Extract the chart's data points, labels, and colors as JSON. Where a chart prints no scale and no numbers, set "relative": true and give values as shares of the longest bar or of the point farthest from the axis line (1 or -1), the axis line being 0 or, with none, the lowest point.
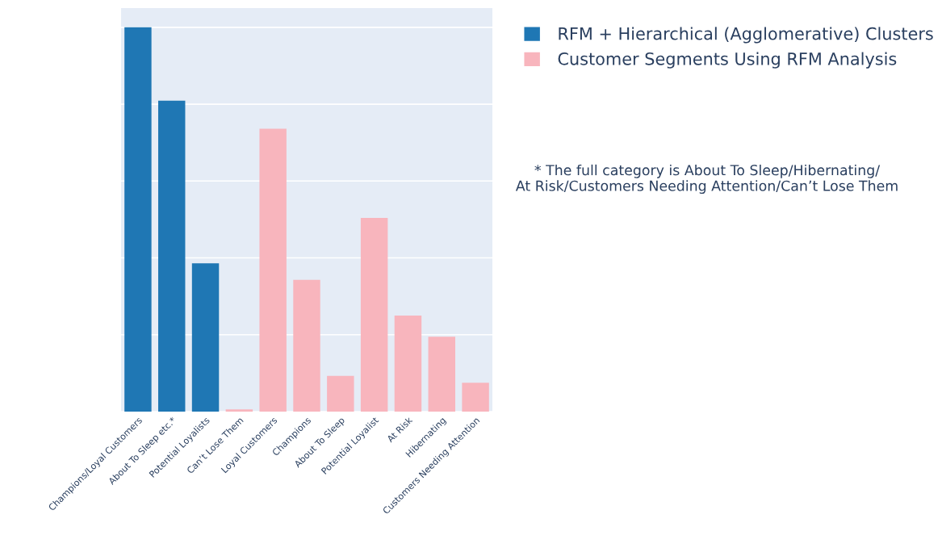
{
  "chart_data": {
    "type": "bar",
    "relative": true,
    "categories": [
      "Champions/Loyal Customers",
      "About To Sleep etc.*",
      "Potential Loyalists",
      "Can’t Lose Them",
      "Loyal Customers",
      "Champions",
      "About To Sleep",
      "Potential Loyalist",
      "At Risk",
      "Hibernating",
      "Customers Needing Attention"
    ],
    "series": [
      {
        "name": "RFM + Hierarchical (Agglomerative) Clusters",
        "color": "#1f77b4",
        "values": [
          1,
          0.809,
          0.386,
          null,
          null,
          null,
          null,
          null,
          null,
          null,
          null
        ]
      },
      {
        "name": "Customer Segments Using RFM Analysis",
        "color": "#f8b5bd",
        "values": [
          null,
          null,
          null,
          0.006,
          0.736,
          0.343,
          0.093,
          0.504,
          0.25,
          0.195,
          0.075
        ]
      }
    ],
    "annotations": [
      "* The full category is About To Sleep/Hibernating/\nAt Risk/Customers Needing Attention/Can’t Lose Them"
    ],
    "grid": "y",
    "legend": "top right"
  }
}
